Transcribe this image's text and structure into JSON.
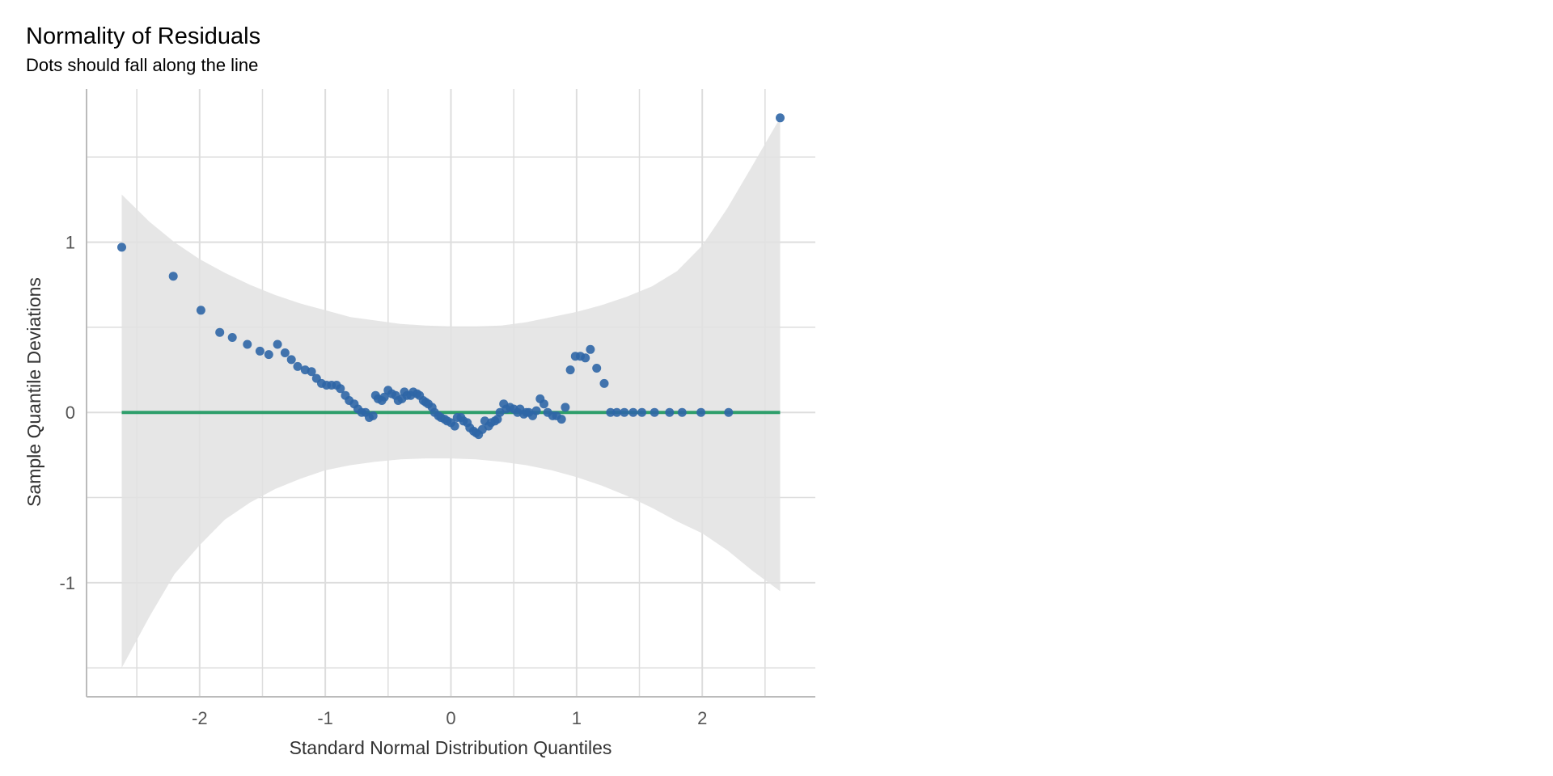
{
  "chart_data": {
    "type": "scatter",
    "title": "Normality of Residuals",
    "subtitle": "Dots should fall along the line",
    "xlabel": "Standard Normal Distribution Quantiles",
    "ylabel": "Sample Quantile Deviations",
    "xlim": [
      -2.9,
      2.9
    ],
    "ylim": [
      -1.67,
      1.9
    ],
    "x_ticks": [
      -2,
      -1,
      0,
      1,
      2
    ],
    "x_tick_labels": [
      "-2",
      "-1",
      "0",
      "1",
      "2"
    ],
    "y_ticks": [
      -1,
      0,
      1
    ],
    "y_tick_labels": [
      "-1",
      "0",
      "1"
    ],
    "grid": true,
    "colors": {
      "points": "#2F66A6",
      "line": "#2E9E6B",
      "band": "#E2E2E2",
      "grid": "#DDDDDD",
      "axis": "#BBBBBB"
    },
    "reference_line": {
      "x": [
        -2.62,
        2.62
      ],
      "y": [
        0,
        0
      ]
    },
    "confidence_band": {
      "x": [
        -2.62,
        -2.4,
        -2.2,
        -2.0,
        -1.8,
        -1.6,
        -1.4,
        -1.2,
        -1.0,
        -0.8,
        -0.6,
        -0.4,
        -0.2,
        0.0,
        0.2,
        0.4,
        0.6,
        0.8,
        1.0,
        1.2,
        1.4,
        1.6,
        1.8,
        2.0,
        2.2,
        2.4,
        2.62
      ],
      "upper": [
        1.28,
        1.12,
        1.0,
        0.9,
        0.82,
        0.75,
        0.69,
        0.64,
        0.6,
        0.56,
        0.54,
        0.52,
        0.51,
        0.505,
        0.505,
        0.51,
        0.53,
        0.56,
        0.59,
        0.63,
        0.68,
        0.74,
        0.83,
        0.98,
        1.2,
        1.45,
        1.73
      ],
      "lower": [
        -1.5,
        -1.2,
        -0.95,
        -0.78,
        -0.63,
        -0.53,
        -0.45,
        -0.39,
        -0.34,
        -0.31,
        -0.29,
        -0.275,
        -0.27,
        -0.27,
        -0.275,
        -0.29,
        -0.31,
        -0.34,
        -0.38,
        -0.43,
        -0.49,
        -0.56,
        -0.64,
        -0.71,
        -0.81,
        -0.93,
        -1.05
      ]
    },
    "points": {
      "x": [
        -2.62,
        -2.21,
        -1.99,
        -1.84,
        -1.74,
        -1.62,
        -1.52,
        -1.45,
        -1.38,
        -1.32,
        -1.27,
        -1.22,
        -1.16,
        -1.11,
        -1.07,
        -1.03,
        -0.99,
        -0.95,
        -0.91,
        -0.88,
        -0.84,
        -0.81,
        -0.77,
        -0.74,
        -0.71,
        -0.68,
        -0.65,
        -0.62,
        -0.6,
        -0.58,
        -0.55,
        -0.53,
        -0.5,
        -0.47,
        -0.44,
        -0.42,
        -0.39,
        -0.37,
        -0.35,
        -0.32,
        -0.3,
        -0.27,
        -0.25,
        -0.22,
        -0.2,
        -0.18,
        -0.15,
        -0.13,
        -0.1,
        -0.08,
        -0.05,
        -0.03,
        0.0,
        0.03,
        0.05,
        0.08,
        0.1,
        0.13,
        0.15,
        0.18,
        0.2,
        0.22,
        0.25,
        0.27,
        0.3,
        0.32,
        0.35,
        0.37,
        0.39,
        0.42,
        0.44,
        0.47,
        0.5,
        0.53,
        0.55,
        0.58,
        0.6,
        0.62,
        0.65,
        0.68,
        0.71,
        0.74,
        0.77,
        0.81,
        0.84,
        0.88,
        0.91,
        0.95,
        0.99,
        1.03,
        1.07,
        1.11,
        1.16,
        1.22,
        1.27,
        1.32,
        1.38,
        1.45,
        1.52,
        1.62,
        1.74,
        1.84,
        1.99,
        2.21,
        2.62
      ],
      "y": [
        0.97,
        0.8,
        0.6,
        0.47,
        0.44,
        0.4,
        0.36,
        0.34,
        0.4,
        0.35,
        0.31,
        0.27,
        0.25,
        0.24,
        0.2,
        0.17,
        0.16,
        0.16,
        0.16,
        0.14,
        0.1,
        0.07,
        0.05,
        0.02,
        0.0,
        0.0,
        -0.03,
        -0.02,
        0.1,
        0.08,
        0.07,
        0.09,
        0.13,
        0.11,
        0.1,
        0.07,
        0.08,
        0.12,
        0.1,
        0.1,
        0.12,
        0.11,
        0.1,
        0.07,
        0.06,
        0.05,
        0.03,
        0.0,
        -0.02,
        -0.03,
        -0.04,
        -0.05,
        -0.06,
        -0.08,
        -0.03,
        -0.03,
        -0.05,
        -0.06,
        -0.09,
        -0.11,
        -0.12,
        -0.13,
        -0.1,
        -0.05,
        -0.08,
        -0.06,
        -0.05,
        -0.04,
        0.0,
        0.05,
        0.02,
        0.03,
        0.02,
        0.0,
        0.02,
        -0.01,
        0.0,
        0.0,
        -0.02,
        0.01,
        0.08,
        0.05,
        0.0,
        -0.02,
        -0.02,
        -0.04,
        0.03,
        0.25,
        0.33,
        0.33,
        0.32,
        0.37,
        0.26,
        0.17,
        0.0,
        0.0,
        0.0,
        0.0,
        0.0,
        0.0,
        0.0,
        0.0,
        0.0,
        0.0,
        1.73
      ]
    }
  }
}
